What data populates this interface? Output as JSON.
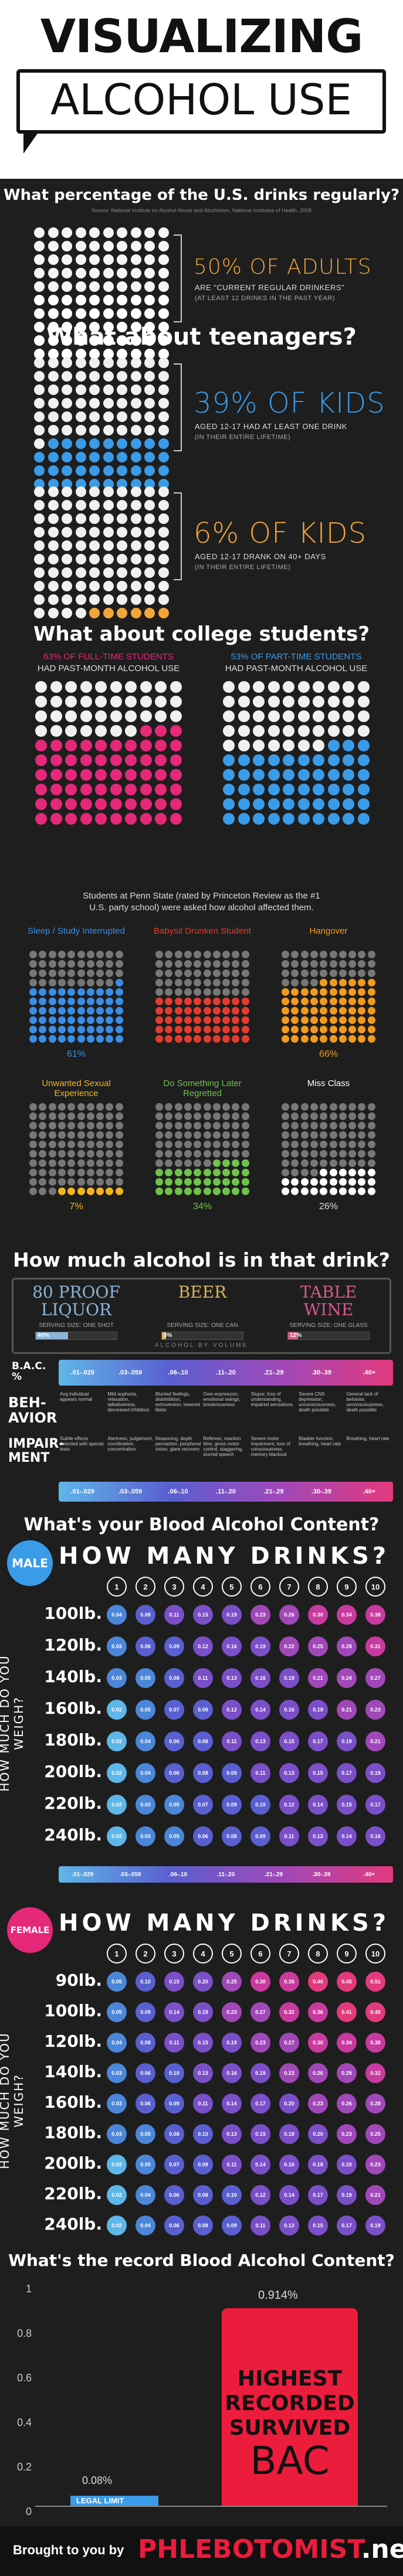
{
  "header": {
    "title_line1": "VISUALIZING",
    "title_line2": "ALCOHOL USE"
  },
  "q1": {
    "question": "What percentage of the U.S. drinks regularly?",
    "source": "Source: National Institute on Alcohol Abuse and Alcoholism, National Institutes of Health, 2008",
    "stat": "50% OF ADULTS",
    "line1": "ARE \"CURRENT REGULAR DRINKERS\"",
    "line2": "(AT LEAST 12 DRINKS IN THE PAST YEAR)",
    "fraction": 0.5
  },
  "q2": {
    "question": "What about teenagers?",
    "stat_a": "39% OF KIDS",
    "line_a1": "AGED 12-17 HAD AT LEAST ONE DRINK",
    "line_a2": "(IN THEIR ENTIRE LIFETIME)",
    "fraction_a": 0.39,
    "stat_b": "6% OF KIDS",
    "line_b1": "AGED 12-17 DRANK ON 40+ DAYS",
    "line_b2": "(IN THEIR ENTIRE LIFETIME)",
    "fraction_b": 0.06
  },
  "q3": {
    "question": "What about college students?",
    "full_time_l1": "63% OF FULL-TIME STUDENTS",
    "full_time_l2": "HAD PAST-MONTH ALCOHOL USE",
    "full_time_fraction": 0.63,
    "part_time_l1": "53% OF PART-TIME STUDENTS",
    "part_time_l2": "HAD PAST-MONTH ALCOHOL USE",
    "part_time_fraction": 0.53,
    "penn_state_l1": "Students at Penn State (rated by Princeton Review as the #1",
    "penn_state_l2": "U.S. party school) were asked how alcohol affected them.",
    "effects": [
      {
        "label": "Sleep / Study Interrupted",
        "pct": "61%",
        "fraction": 0.61,
        "color": "#3a8ee6"
      },
      {
        "label": "Babysit Drunken Student",
        "pct": "",
        "fraction": 0.5,
        "color": "#e53b2f"
      },
      {
        "label": "Hangover",
        "pct": "66%",
        "fraction": 0.66,
        "color": "#f29a1d"
      },
      {
        "label": "Unwanted Sexual Experience",
        "pct": "7%",
        "fraction": 0.07,
        "color": "#f2b51d"
      },
      {
        "label": "Do Something Later Regretted",
        "pct": "34%",
        "fraction": 0.34,
        "color": "#6fc24a"
      },
      {
        "label": "Miss Class",
        "pct": "26%",
        "fraction": 0.26,
        "color": "#ffffff"
      }
    ]
  },
  "q4": {
    "question": "How much alcohol is in that drink?",
    "drinks": [
      {
        "name": "80 PROOF LIQUOR",
        "serving": "SERVING SIZE: ONE SHOT",
        "pct": "40%",
        "fraction": 0.4,
        "color": "#8ab4d8"
      },
      {
        "name": "BEER",
        "serving": "SERVING SIZE: ONE CAN",
        "pct": "5%",
        "fraction": 0.05,
        "color": "#d8b25a"
      },
      {
        "name": "TABLE WINE",
        "serving": "SERVING SIZE: ONE GLASS",
        "pct": "12%",
        "fraction": 0.12,
        "color": "#d05a8a"
      }
    ],
    "by_volume": "ALCOHOL BY VOLUME"
  },
  "bac_scale": {
    "label_bac": "B.A.C. %",
    "label_behavior": "BEH-AVIOR",
    "label_impairment": "IMPAIR-MENT",
    "ranges": [
      ".01-.029",
      ".03-.059",
      ".06-.10",
      ".11-.20",
      ".21-.29",
      ".30-.39",
      ".40+"
    ],
    "colors": [
      "#5fb6e8",
      "#4b86d8",
      "#5a5fd0",
      "#7a4fc8",
      "#a048b8",
      "#c83a9e",
      "#e23a7c"
    ],
    "behavior": [
      "Avg individual appears normal",
      "Mild euphoria, relaxation, talkativeness, decreased inhibition",
      "Blunted feelings, disinhibition, extroversion, lowered libido",
      "Over-expression, emotional swings, boisterousness",
      "Stupor, loss of understanding, impaired sensations",
      "Severe CNS depression, unconsciousness, death possible",
      "General lack of behavior, unconsciousness, death possible"
    ],
    "impairment": [
      "Subtle effects detected with special tests",
      "Alertness, judgement, coordination, concentration",
      "Reasoning, depth perception, peripheral vision, glare recovery",
      "Reflexes, reaction time, gross motor control, staggering, slurred speech",
      "Severe motor impairment, loss of consciousness, memory blackout",
      "Bladder function, breathing, heart rate",
      "Breathing, heart rate"
    ]
  },
  "q5": {
    "question": "What's your Blood Alcohol Content?"
  },
  "male": {
    "badge": "MALE",
    "title": "HOW MANY DRINKS?",
    "side_label": "HOW MUCH DO YOU WEIGH?",
    "drinks": [
      "1",
      "2",
      "3",
      "4",
      "5",
      "6",
      "7",
      "8",
      "9",
      "10"
    ],
    "weights": [
      "100lb.",
      "120lb.",
      "140lb.",
      "160lb.",
      "180lb.",
      "200lb.",
      "220lb.",
      "240lb."
    ],
    "values": [
      [
        "0.04",
        "0.08",
        "0.11",
        "0.15",
        "0.19",
        "0.23",
        "0.26",
        "0.30",
        "0.34",
        "0.38"
      ],
      [
        "0.03",
        "0.06",
        "0.09",
        "0.12",
        "0.16",
        "0.19",
        "0.22",
        "0.25",
        "0.28",
        "0.31"
      ],
      [
        "0.03",
        "0.05",
        "0.08",
        "0.11",
        "0.13",
        "0.16",
        "0.19",
        "0.21",
        "0.24",
        "0.27"
      ],
      [
        "0.02",
        "0.05",
        "0.07",
        "0.09",
        "0.12",
        "0.14",
        "0.16",
        "0.19",
        "0.21",
        "0.23"
      ],
      [
        "0.02",
        "0.04",
        "0.06",
        "0.08",
        "0.11",
        "0.13",
        "0.15",
        "0.17",
        "0.19",
        "0.21"
      ],
      [
        "0.02",
        "0.04",
        "0.06",
        "0.08",
        "0.09",
        "0.11",
        "0.13",
        "0.15",
        "0.17",
        "0.19"
      ],
      [
        "0.02",
        "0.03",
        "0.05",
        "0.07",
        "0.09",
        "0.10",
        "0.12",
        "0.14",
        "0.15",
        "0.17"
      ],
      [
        "0.02",
        "0.03",
        "0.05",
        "0.06",
        "0.08",
        "0.09",
        "0.11",
        "0.13",
        "0.14",
        "0.16"
      ]
    ]
  },
  "female": {
    "badge": "FEMALE",
    "title": "HOW MANY DRINKS?",
    "side_label": "HOW MUCH DO YOU WEIGH?",
    "drinks": [
      "1",
      "2",
      "3",
      "4",
      "5",
      "6",
      "7",
      "8",
      "9",
      "10"
    ],
    "weights": [
      "90lb.",
      "100lb.",
      "120lb.",
      "140lb.",
      "160lb.",
      "180lb.",
      "200lb.",
      "220lb.",
      "240lb."
    ],
    "values": [
      [
        "0.05",
        "0.10",
        "0.15",
        "0.20",
        "0.25",
        "0.30",
        "0.35",
        "0.40",
        "0.45",
        "0.51"
      ],
      [
        "0.05",
        "0.09",
        "0.14",
        "0.18",
        "0.23",
        "0.27",
        "0.32",
        "0.36",
        "0.41",
        "0.45"
      ],
      [
        "0.04",
        "0.08",
        "0.11",
        "0.15",
        "0.19",
        "0.23",
        "0.27",
        "0.30",
        "0.34",
        "0.38"
      ],
      [
        "0.03",
        "0.06",
        "0.10",
        "0.13",
        "0.16",
        "0.19",
        "0.23",
        "0.26",
        "0.29",
        "0.32"
      ],
      [
        "0.03",
        "0.06",
        "0.09",
        "0.11",
        "0.14",
        "0.17",
        "0.20",
        "0.23",
        "0.26",
        "0.28"
      ],
      [
        "0.03",
        "0.05",
        "0.08",
        "0.10",
        "0.13",
        "0.15",
        "0.18",
        "0.20",
        "0.23",
        "0.25"
      ],
      [
        "0.02",
        "0.05",
        "0.07",
        "0.09",
        "0.11",
        "0.14",
        "0.16",
        "0.18",
        "0.20",
        "0.23"
      ],
      [
        "0.02",
        "0.04",
        "0.06",
        "0.08",
        "0.10",
        "0.12",
        "0.14",
        "0.17",
        "0.19",
        "0.21"
      ],
      [
        "0.02",
        "0.04",
        "0.06",
        "0.08",
        "0.09",
        "0.11",
        "0.13",
        "0.15",
        "0.17",
        "0.19"
      ]
    ]
  },
  "record": {
    "question": "What's the record Blood Alcohol Content?",
    "record_value": "0.914%",
    "record_label_1": "HIGHEST",
    "record_label_2": "RECORDED",
    "record_label_3": "SURVIVED",
    "record_label_4": "BAC",
    "legal_value": "0.08%",
    "legal_label": "LEGAL LIMIT",
    "ticks": [
      "1",
      "0.8",
      "0.6",
      "0.4",
      "0.2",
      "0"
    ]
  },
  "footer": {
    "brought_by": "Brought to you by",
    "brand": "PHLEBOTOMIST",
    "brand_suffix": ".net"
  }
}
